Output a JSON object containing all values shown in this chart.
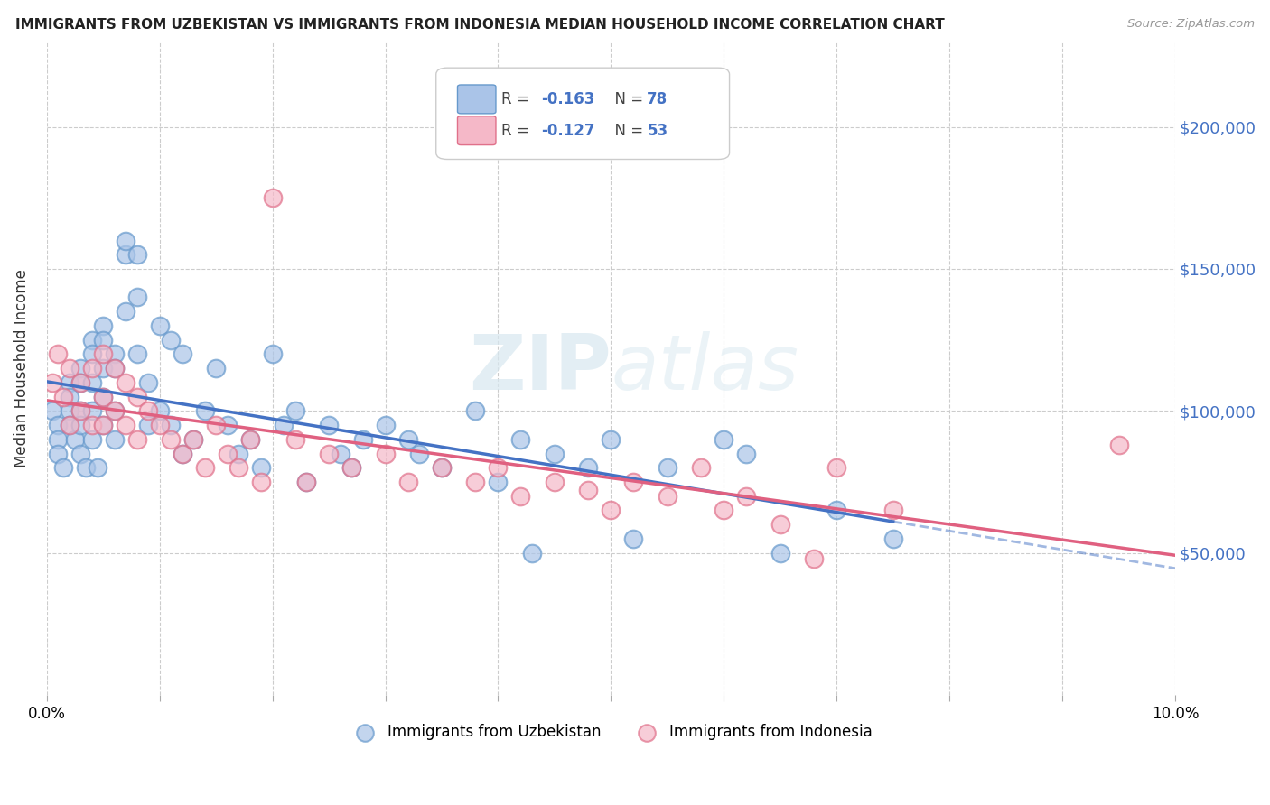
{
  "title": "IMMIGRANTS FROM UZBEKISTAN VS IMMIGRANTS FROM INDONESIA MEDIAN HOUSEHOLD INCOME CORRELATION CHART",
  "source": "Source: ZipAtlas.com",
  "ylabel": "Median Household Income",
  "xlim": [
    0.0,
    0.1
  ],
  "ylim": [
    0,
    230000
  ],
  "yticks": [
    50000,
    100000,
    150000,
    200000
  ],
  "ytick_labels": [
    "$50,000",
    "$100,000",
    "$150,000",
    "$200,000"
  ],
  "watermark_zip": "ZIP",
  "watermark_atlas": "atlas",
  "legend_r1": "R = -0.163",
  "legend_n1": "N = 78",
  "legend_r2": "R = -0.127",
  "legend_n2": "N = 53",
  "color_uzbek_fill": "#aac4e8",
  "color_uzbek_edge": "#6699cc",
  "color_indo_fill": "#f5b8c8",
  "color_indo_edge": "#e0708a",
  "color_uzbek_line": "#4472c4",
  "color_indo_line": "#e06080",
  "background": "#ffffff",
  "uzbek_x": [
    0.0005,
    0.001,
    0.001,
    0.001,
    0.0015,
    0.002,
    0.002,
    0.002,
    0.002,
    0.0025,
    0.003,
    0.003,
    0.003,
    0.003,
    0.003,
    0.0035,
    0.004,
    0.004,
    0.004,
    0.004,
    0.004,
    0.0045,
    0.005,
    0.005,
    0.005,
    0.005,
    0.005,
    0.006,
    0.006,
    0.006,
    0.006,
    0.007,
    0.007,
    0.007,
    0.008,
    0.008,
    0.008,
    0.009,
    0.009,
    0.01,
    0.01,
    0.011,
    0.011,
    0.012,
    0.012,
    0.013,
    0.014,
    0.015,
    0.016,
    0.017,
    0.018,
    0.019,
    0.02,
    0.021,
    0.022,
    0.023,
    0.025,
    0.026,
    0.027,
    0.028,
    0.03,
    0.032,
    0.033,
    0.035,
    0.038,
    0.04,
    0.042,
    0.043,
    0.045,
    0.048,
    0.05,
    0.052,
    0.055,
    0.06,
    0.062,
    0.065,
    0.07,
    0.075
  ],
  "uzbek_y": [
    100000,
    95000,
    90000,
    85000,
    80000,
    110000,
    105000,
    100000,
    95000,
    90000,
    115000,
    110000,
    100000,
    95000,
    85000,
    80000,
    125000,
    120000,
    110000,
    100000,
    90000,
    80000,
    130000,
    125000,
    115000,
    105000,
    95000,
    120000,
    115000,
    100000,
    90000,
    155000,
    160000,
    135000,
    155000,
    140000,
    120000,
    110000,
    95000,
    130000,
    100000,
    125000,
    95000,
    120000,
    85000,
    90000,
    100000,
    115000,
    95000,
    85000,
    90000,
    80000,
    120000,
    95000,
    100000,
    75000,
    95000,
    85000,
    80000,
    90000,
    95000,
    90000,
    85000,
    80000,
    100000,
    75000,
    90000,
    50000,
    85000,
    80000,
    90000,
    55000,
    80000,
    90000,
    85000,
    50000,
    65000,
    55000
  ],
  "indo_x": [
    0.0005,
    0.001,
    0.0015,
    0.002,
    0.002,
    0.003,
    0.003,
    0.004,
    0.004,
    0.005,
    0.005,
    0.005,
    0.006,
    0.006,
    0.007,
    0.007,
    0.008,
    0.008,
    0.009,
    0.01,
    0.011,
    0.012,
    0.013,
    0.014,
    0.015,
    0.016,
    0.017,
    0.018,
    0.019,
    0.02,
    0.022,
    0.023,
    0.025,
    0.027,
    0.03,
    0.032,
    0.035,
    0.038,
    0.04,
    0.042,
    0.045,
    0.048,
    0.05,
    0.052,
    0.055,
    0.058,
    0.06,
    0.062,
    0.065,
    0.068,
    0.07,
    0.075,
    0.095
  ],
  "indo_y": [
    110000,
    120000,
    105000,
    115000,
    95000,
    110000,
    100000,
    115000,
    95000,
    120000,
    105000,
    95000,
    115000,
    100000,
    110000,
    95000,
    105000,
    90000,
    100000,
    95000,
    90000,
    85000,
    90000,
    80000,
    95000,
    85000,
    80000,
    90000,
    75000,
    175000,
    90000,
    75000,
    85000,
    80000,
    85000,
    75000,
    80000,
    75000,
    80000,
    70000,
    75000,
    72000,
    65000,
    75000,
    70000,
    80000,
    65000,
    70000,
    60000,
    48000,
    80000,
    65000,
    88000
  ]
}
